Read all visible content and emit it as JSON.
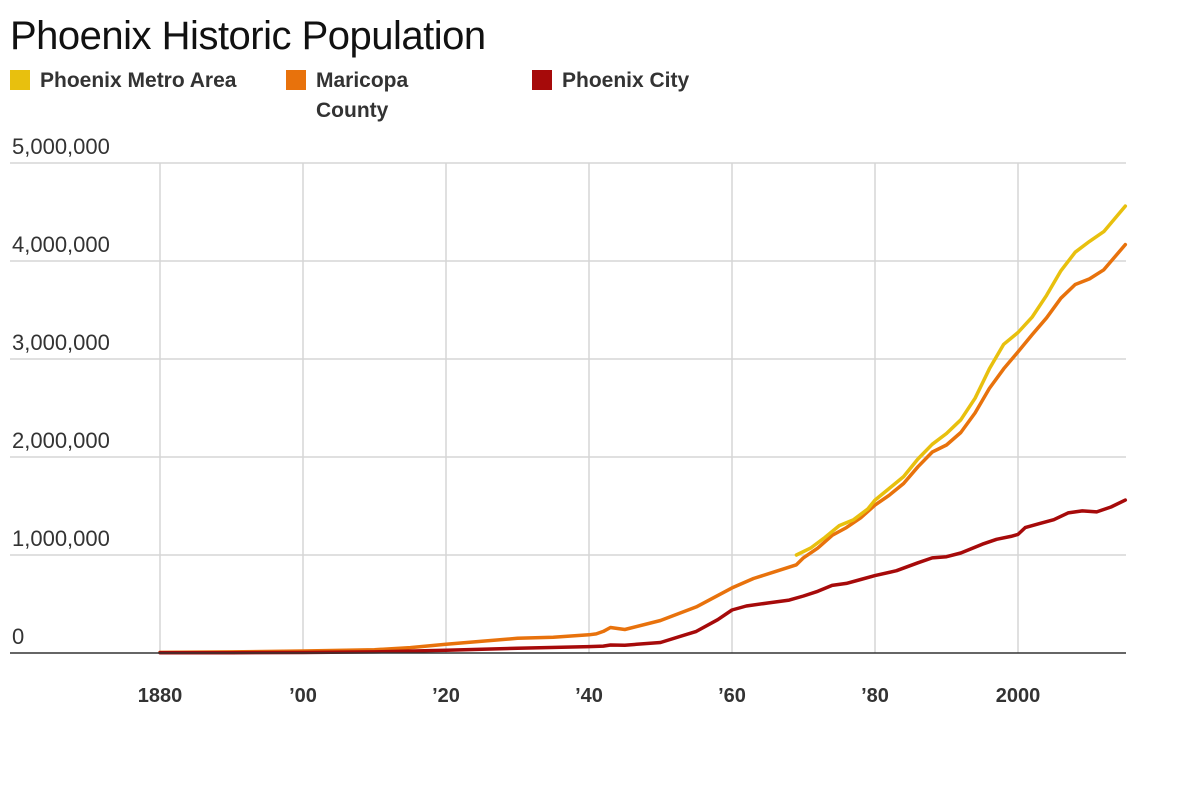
{
  "chart_data": {
    "type": "line",
    "title": "Phoenix Historic Population",
    "xlabel": "",
    "ylabel": "",
    "xlim": [
      1880,
      2015
    ],
    "ylim": [
      0,
      5000000
    ],
    "x_ticks": [
      {
        "value": 1880,
        "label": "1880"
      },
      {
        "value": 1900,
        "label": "’00"
      },
      {
        "value": 1920,
        "label": "’20"
      },
      {
        "value": 1940,
        "label": "’40"
      },
      {
        "value": 1960,
        "label": "’60"
      },
      {
        "value": 1980,
        "label": "’80"
      },
      {
        "value": 2000,
        "label": "2000"
      }
    ],
    "y_ticks": [
      {
        "value": 0,
        "label": "0"
      },
      {
        "value": 1000000,
        "label": "1,000,000"
      },
      {
        "value": 2000000,
        "label": "2,000,000"
      },
      {
        "value": 3000000,
        "label": "3,000,000"
      },
      {
        "value": 4000000,
        "label": "4,000,000"
      },
      {
        "value": 5000000,
        "label": "5,000,000"
      }
    ],
    "grid": true,
    "legend_position": "top-left",
    "series": [
      {
        "name": "Phoenix Metro Area",
        "color": "#e8c00e",
        "points": [
          [
            1969,
            1000000
          ],
          [
            1971,
            1070000
          ],
          [
            1973,
            1180000
          ],
          [
            1975,
            1300000
          ],
          [
            1977,
            1360000
          ],
          [
            1979,
            1470000
          ],
          [
            1980,
            1560000
          ],
          [
            1982,
            1680000
          ],
          [
            1984,
            1800000
          ],
          [
            1986,
            1980000
          ],
          [
            1988,
            2130000
          ],
          [
            1990,
            2240000
          ],
          [
            1992,
            2380000
          ],
          [
            1994,
            2600000
          ],
          [
            1996,
            2900000
          ],
          [
            1998,
            3150000
          ],
          [
            2000,
            3270000
          ],
          [
            2002,
            3430000
          ],
          [
            2004,
            3650000
          ],
          [
            2006,
            3900000
          ],
          [
            2008,
            4090000
          ],
          [
            2010,
            4200000
          ],
          [
            2012,
            4300000
          ],
          [
            2015,
            4560000
          ]
        ]
      },
      {
        "name": "Maricopa County",
        "color": "#e8720c",
        "points": [
          [
            1880,
            5700
          ],
          [
            1890,
            11000
          ],
          [
            1900,
            20000
          ],
          [
            1910,
            34000
          ],
          [
            1915,
            55000
          ],
          [
            1920,
            90000
          ],
          [
            1925,
            120000
          ],
          [
            1930,
            150000
          ],
          [
            1935,
            160000
          ],
          [
            1940,
            186000
          ],
          [
            1941,
            195000
          ],
          [
            1942,
            220000
          ],
          [
            1943,
            260000
          ],
          [
            1944,
            250000
          ],
          [
            1945,
            240000
          ],
          [
            1950,
            332000
          ],
          [
            1955,
            470000
          ],
          [
            1960,
            664000
          ],
          [
            1963,
            760000
          ],
          [
            1966,
            830000
          ],
          [
            1969,
            900000
          ],
          [
            1970,
            971000
          ],
          [
            1972,
            1070000
          ],
          [
            1974,
            1200000
          ],
          [
            1976,
            1280000
          ],
          [
            1978,
            1380000
          ],
          [
            1980,
            1509000
          ],
          [
            1982,
            1610000
          ],
          [
            1984,
            1730000
          ],
          [
            1986,
            1900000
          ],
          [
            1988,
            2050000
          ],
          [
            1990,
            2122000
          ],
          [
            1992,
            2250000
          ],
          [
            1994,
            2450000
          ],
          [
            1996,
            2700000
          ],
          [
            1998,
            2900000
          ],
          [
            2000,
            3072000
          ],
          [
            2002,
            3250000
          ],
          [
            2004,
            3420000
          ],
          [
            2006,
            3620000
          ],
          [
            2008,
            3760000
          ],
          [
            2010,
            3817000
          ],
          [
            2012,
            3910000
          ],
          [
            2015,
            4167000
          ]
        ]
      },
      {
        "name": "Phoenix City",
        "color": "#a60a0a",
        "points": [
          [
            1880,
            1700
          ],
          [
            1890,
            3200
          ],
          [
            1900,
            5500
          ],
          [
            1910,
            11000
          ],
          [
            1920,
            29000
          ],
          [
            1930,
            48000
          ],
          [
            1940,
            65000
          ],
          [
            1942,
            70000
          ],
          [
            1943,
            82000
          ],
          [
            1945,
            80000
          ],
          [
            1950,
            107000
          ],
          [
            1955,
            220000
          ],
          [
            1958,
            340000
          ],
          [
            1960,
            439000
          ],
          [
            1962,
            480000
          ],
          [
            1965,
            510000
          ],
          [
            1968,
            540000
          ],
          [
            1970,
            582000
          ],
          [
            1972,
            630000
          ],
          [
            1974,
            690000
          ],
          [
            1976,
            710000
          ],
          [
            1978,
            750000
          ],
          [
            1980,
            790000
          ],
          [
            1983,
            840000
          ],
          [
            1986,
            920000
          ],
          [
            1988,
            970000
          ],
          [
            1990,
            983000
          ],
          [
            1992,
            1020000
          ],
          [
            1995,
            1110000
          ],
          [
            1997,
            1160000
          ],
          [
            1999,
            1190000
          ],
          [
            2000,
            1210000
          ],
          [
            2001,
            1280000
          ],
          [
            2003,
            1320000
          ],
          [
            2005,
            1360000
          ],
          [
            2007,
            1430000
          ],
          [
            2009,
            1450000
          ],
          [
            2011,
            1440000
          ],
          [
            2013,
            1490000
          ],
          [
            2015,
            1560000
          ]
        ]
      }
    ]
  }
}
